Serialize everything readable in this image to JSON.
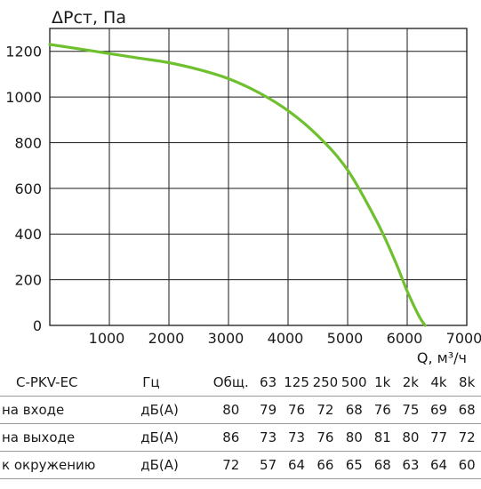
{
  "chart_data": {
    "type": "line",
    "ylabel": "ΔРст, Па",
    "xlabel": "Q, м³/ч",
    "xlim": [
      0,
      7000
    ],
    "ylim": [
      0,
      1300
    ],
    "x_ticks": [
      1000,
      2000,
      3000,
      4000,
      5000,
      6000,
      7000
    ],
    "y_ticks": [
      0,
      200,
      400,
      600,
      800,
      1000,
      1200
    ],
    "grid": true,
    "series": [
      {
        "color": "#6fc02e",
        "x": [
          0,
          500,
          1000,
          1500,
          2000,
          2500,
          3000,
          3500,
          4000,
          4500,
          5000,
          5500,
          5800,
          6000,
          6200,
          6300
        ],
        "y": [
          1230,
          1210,
          1190,
          1170,
          1150,
          1120,
          1080,
          1020,
          940,
          830,
          680,
          450,
          280,
          150,
          40,
          0
        ]
      }
    ]
  },
  "table": {
    "model": "C-PKV-EC",
    "unit_header": "Гц",
    "total_header": "Общ.",
    "bands": [
      "63",
      "125",
      "250",
      "500",
      "1k",
      "2k",
      "4k",
      "8k"
    ],
    "rows": [
      {
        "label": "на входе",
        "unit": "дБ(А)",
        "total": "80",
        "values": [
          "79",
          "76",
          "72",
          "68",
          "76",
          "75",
          "69",
          "68"
        ]
      },
      {
        "label": "на выходе",
        "unit": "дБ(А)",
        "total": "86",
        "values": [
          "73",
          "73",
          "76",
          "80",
          "81",
          "80",
          "77",
          "72"
        ]
      },
      {
        "label": "к окружению",
        "unit": "дБ(А)",
        "total": "72",
        "values": [
          "57",
          "64",
          "66",
          "65",
          "68",
          "63",
          "64",
          "60"
        ]
      }
    ]
  }
}
